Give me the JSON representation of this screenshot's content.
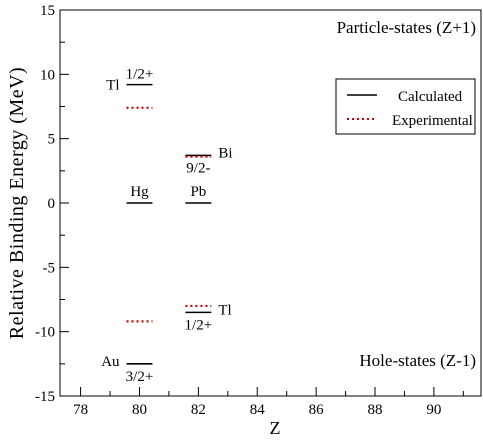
{
  "chart_data": {
    "type": "level-scheme",
    "xlabel": "Z",
    "ylabel": "Relative Binding Energy (MeV)",
    "xlim": [
      77.3,
      91.6
    ],
    "ylim": [
      -15,
      15
    ],
    "x_ticks": [
      78,
      80,
      82,
      84,
      86,
      88,
      90
    ],
    "y_ticks": [
      -15,
      -10,
      -5,
      0,
      5,
      10,
      15
    ],
    "grid": false,
    "legend_position": "top-right",
    "annotations": {
      "particle_states": "Particle-states (Z+1)",
      "hole_states": "Hole-states (Z-1)"
    },
    "series": [
      {
        "name": "Calculated",
        "style": "solid",
        "color": "#000000",
        "levels": [
          {
            "z": 80,
            "energy": 9.2,
            "element": "Tl",
            "spin": "1/2+"
          },
          {
            "z": 80,
            "energy": 0.0,
            "element": "Hg",
            "spin": ""
          },
          {
            "z": 80,
            "energy": -12.5,
            "element": "Au",
            "spin": "3/2+"
          },
          {
            "z": 82,
            "energy": 3.7,
            "element": "Bi",
            "spin": "9/2-"
          },
          {
            "z": 82,
            "energy": 0.0,
            "element": "Pb",
            "spin": ""
          },
          {
            "z": 82,
            "energy": -8.5,
            "element": "Tl",
            "spin": "1/2+"
          }
        ]
      },
      {
        "name": "Experimental",
        "style": "dotted",
        "color": "#cc0000",
        "levels": [
          {
            "z": 80,
            "energy": 7.4
          },
          {
            "z": 80,
            "energy": -9.2
          },
          {
            "z": 82,
            "energy": 3.6
          },
          {
            "z": 82,
            "energy": -8.0
          }
        ]
      }
    ]
  }
}
